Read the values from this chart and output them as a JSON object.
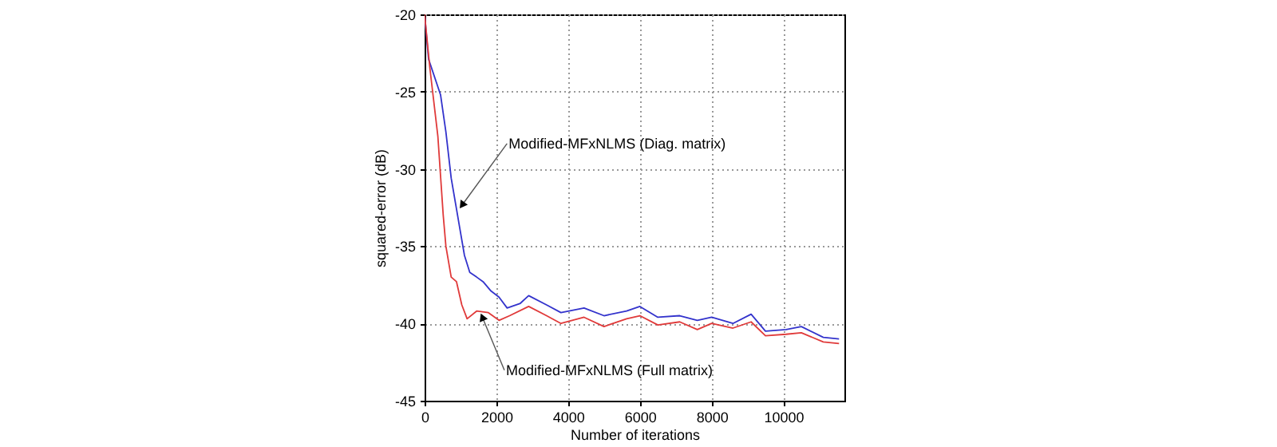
{
  "chart_data": {
    "type": "line",
    "xlabel": "Number of iterations",
    "ylabel": "squared-error (dB)",
    "xlim": [
      0,
      11700
    ],
    "ylim": [
      -45,
      -20
    ],
    "xticks": [
      0,
      2000,
      4000,
      6000,
      8000,
      10000
    ],
    "yticks": [
      -45,
      -40,
      -35,
      -30,
      -25,
      -20
    ],
    "grid": true,
    "series": [
      {
        "color": "#3333cc",
        "x": [
          0,
          111,
          444,
          593,
          741,
          889,
          963,
          1111,
          1259,
          1450,
          1630,
          1850,
          2074,
          2300,
          2667,
          2900,
          3400,
          3800,
          4444,
          5000,
          5630,
          6000,
          6500,
          7111,
          7600,
          8000,
          8593,
          9100,
          9500,
          10074,
          10500,
          11111,
          11550
        ],
        "values": [
          -20,
          -22.9,
          -25.2,
          -27.6,
          -30.6,
          -32.6,
          -33.6,
          -35.6,
          -36.7,
          -37.0,
          -37.3,
          -37.9,
          -38.3,
          -39.0,
          -38.7,
          -38.2,
          -38.8,
          -39.3,
          -39.0,
          -39.5,
          -39.2,
          -38.9,
          -39.6,
          -39.5,
          -39.8,
          -39.6,
          -40.0,
          -39.4,
          -40.5,
          -40.4,
          -40.2,
          -40.9,
          -41.0
        ]
      },
      {
        "color": "#e03a3a",
        "x": [
          0,
          148,
          370,
          519,
          593,
          741,
          889,
          1037,
          1185,
          1450,
          1778,
          2074,
          2370,
          2900,
          3400,
          3800,
          4444,
          5000,
          5630,
          6000,
          6500,
          7111,
          7600,
          8000,
          8593,
          9100,
          9500,
          10074,
          10500,
          11111,
          11550
        ],
        "values": [
          -20,
          -23.5,
          -27.9,
          -33.0,
          -35.0,
          -37.0,
          -37.3,
          -38.8,
          -39.7,
          -39.2,
          -39.3,
          -39.8,
          -39.5,
          -38.9,
          -39.5,
          -40.0,
          -39.6,
          -40.2,
          -39.7,
          -39.5,
          -40.1,
          -39.9,
          -40.4,
          -40.0,
          -40.3,
          -39.9,
          -40.8,
          -40.7,
          -40.6,
          -41.2,
          -41.3
        ]
      }
    ],
    "annotations": [
      {
        "text": "Modified-MFxNLMS (Diag. matrix)",
        "x": 963,
        "y": -32.6
      },
      {
        "text": "Modified-MFxNLMS (Full matrix)",
        "x": 1556,
        "y": -39.3
      }
    ]
  }
}
